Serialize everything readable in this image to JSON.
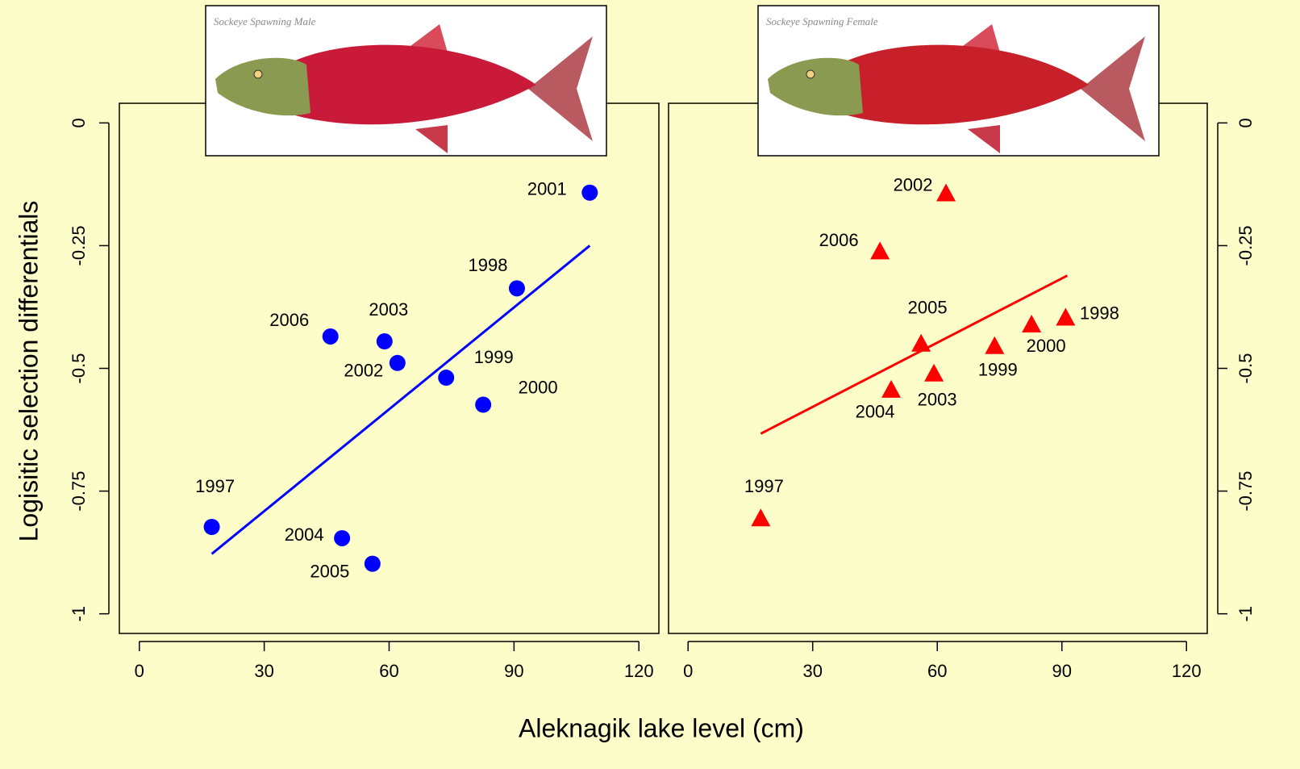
{
  "axis_labels": {
    "x": "Aleknagik lake level (cm)",
    "y": "Logisitic selection differentials"
  },
  "chart_data": [
    {
      "type": "scatter",
      "image_caption": "Sockeye Spawning Male",
      "x": [
        17.4,
        48.7,
        56.0,
        45.9,
        58.9,
        62.0,
        73.7,
        82.6,
        90.7,
        108.2
      ],
      "values": [
        -0.823,
        -0.846,
        -0.898,
        -0.435,
        -0.445,
        -0.489,
        -0.519,
        -0.574,
        -0.337,
        -0.142
      ],
      "labels": [
        "1997",
        "2004",
        "2005",
        "2006",
        "2003",
        "2002",
        "1999",
        "2000",
        "1998",
        "2001"
      ],
      "color": "#0000ff",
      "marker": "circle",
      "fit": {
        "x": [
          17.4,
          108.2
        ],
        "values": [
          -0.878,
          -0.25
        ],
        "color": "#0000ff"
      },
      "xlim": [
        -4.8,
        124.8
      ],
      "ylim": [
        -1.04,
        0.04
      ],
      "xticks": [
        0,
        30,
        60,
        90,
        120
      ],
      "yticks": [
        0,
        -0.25,
        -0.5,
        -0.75,
        -1
      ],
      "yaxis_side": "left"
    },
    {
      "type": "scatter",
      "image_caption": "Sockeye Spawning Female",
      "x": [
        17.5,
        62.1,
        46.2,
        56.1,
        48.9,
        59.2,
        73.8,
        82.7,
        90.9
      ],
      "values": [
        -0.807,
        -0.145,
        -0.263,
        -0.451,
        -0.545,
        -0.512,
        -0.456,
        -0.412,
        -0.398
      ],
      "labels": [
        "1997",
        "2002",
        "2006",
        "2005",
        "2004",
        "2003",
        "1999",
        "2000",
        "1998"
      ],
      "color": "#ff0000",
      "marker": "triangle",
      "fit": {
        "x": [
          17.5,
          91.3
        ],
        "values": [
          -0.633,
          -0.311
        ],
        "color": "#ff0000"
      },
      "xlim": [
        -4.7,
        125
      ],
      "ylim": [
        -1.04,
        0.04
      ],
      "xticks": [
        0,
        30,
        60,
        90,
        120
      ],
      "yticks": [
        0,
        -0.25,
        -0.5,
        -0.75,
        -1
      ],
      "yaxis_side": "right"
    }
  ]
}
